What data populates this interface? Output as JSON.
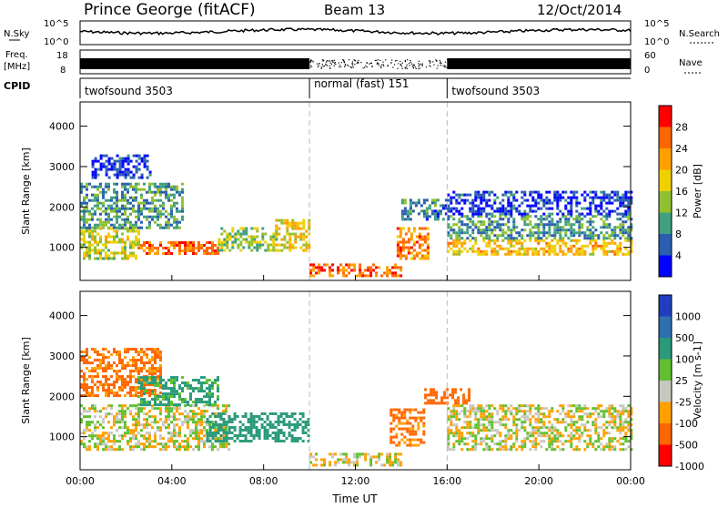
{
  "header": {
    "station": "Prince George (fitACF)",
    "beam": "Beam 13",
    "date": "12/Oct/2014"
  },
  "top_panels": {
    "nsky": {
      "label": "N.Sky",
      "ticks": [
        "10^5",
        "10^0"
      ]
    },
    "nsearch": {
      "label": "N.Search",
      "ticks": [
        "10^5",
        "10^0"
      ]
    },
    "freq": {
      "label_line1": "Freq.",
      "label_line2": "[MHz]",
      "ticks": [
        "18",
        "8"
      ]
    },
    "nave": {
      "label": "Nave",
      "ticks": [
        "60",
        "0"
      ]
    },
    "cpid": {
      "label": "CPID",
      "segments": [
        {
          "name": "twofsound 3503",
          "start_h": 0,
          "end_h": 10
        },
        {
          "name": "normal (fast) 151",
          "start_h": 10,
          "end_h": 16
        },
        {
          "name": "twofsound 3503",
          "start_h": 16,
          "end_h": 24
        }
      ]
    }
  },
  "x_axis": {
    "label": "Time UT",
    "ticks": [
      "00:00",
      "04:00",
      "08:00",
      "12:00",
      "16:00",
      "20:00",
      "00:00"
    ]
  },
  "chart_data": [
    {
      "type": "heatmap",
      "name": "power",
      "ylabel": "Slant Range [km]",
      "xlabel": "Time UT",
      "xlim": [
        0,
        24
      ],
      "ylim": [
        180,
        4600
      ],
      "yticks": [
        1000,
        2000,
        3000,
        4000
      ],
      "colorbar": {
        "label": "Power [dB]",
        "ticks": [
          "28",
          "24",
          "20",
          "16",
          "12",
          "8",
          "4"
        ],
        "colors": [
          "#ff0000",
          "#ff6600",
          "#ffa000",
          "#f0d000",
          "#90c030",
          "#40a080",
          "#2a5fb0",
          "#0000ff"
        ]
      },
      "regions": [
        {
          "t0": 0.0,
          "t1": 2.5,
          "r0": 700,
          "r1": 1500,
          "value": 16
        },
        {
          "t0": 2.5,
          "t1": 6.0,
          "r0": 850,
          "r1": 1150,
          "value": 26
        },
        {
          "t0": 0.0,
          "t1": 4.5,
          "r0": 1500,
          "r1": 2600,
          "value": 10
        },
        {
          "t0": 0.5,
          "t1": 3.0,
          "r0": 2700,
          "r1": 3300,
          "value": 4
        },
        {
          "t0": 6.0,
          "t1": 8.5,
          "r0": 900,
          "r1": 1500,
          "value": 14
        },
        {
          "t0": 8.5,
          "t1": 10.0,
          "r0": 900,
          "r1": 1700,
          "value": 18
        },
        {
          "t0": 10.0,
          "t1": 14.0,
          "r0": 300,
          "r1": 600,
          "value": 26
        },
        {
          "t0": 13.8,
          "t1": 15.2,
          "r0": 700,
          "r1": 1500,
          "value": 24
        },
        {
          "t0": 14.0,
          "t1": 16.0,
          "r0": 1700,
          "r1": 2200,
          "value": 8
        },
        {
          "t0": 16.0,
          "t1": 24.0,
          "r0": 800,
          "r1": 1200,
          "value": 20
        },
        {
          "t0": 16.0,
          "t1": 24.0,
          "r0": 1200,
          "r1": 1800,
          "value": 10
        },
        {
          "t0": 16.0,
          "t1": 24.0,
          "r0": 1800,
          "r1": 2400,
          "value": 4
        }
      ]
    },
    {
      "type": "heatmap",
      "name": "velocity",
      "ylabel": "Slant Range [km]",
      "xlabel": "Time UT",
      "xlim": [
        0,
        24
      ],
      "ylim": [
        180,
        4600
      ],
      "yticks": [
        1000,
        2000,
        3000,
        4000
      ],
      "colorbar": {
        "label": "Velocity [m s-1]",
        "ticks": [
          "1000",
          "500",
          "100",
          "25",
          "-25",
          "-100",
          "-500",
          "-1000"
        ],
        "colors": [
          "#1f3fbf",
          "#2f6fb0",
          "#2a9a7a",
          "#60c030",
          "#c8c8c0",
          "#ffa000",
          "#ff6600",
          "#ff0000"
        ]
      },
      "regions": [
        {
          "t0": 0.0,
          "t1": 6.5,
          "r0": 700,
          "r1": 1800,
          "value": 0
        },
        {
          "t0": 0.0,
          "t1": 3.5,
          "r0": 2000,
          "r1": 3200,
          "value": -150
        },
        {
          "t0": 2.5,
          "t1": 6.0,
          "r0": 1800,
          "r1": 2500,
          "value": 150
        },
        {
          "t0": 5.5,
          "t1": 10.0,
          "r0": 900,
          "r1": 1600,
          "value": 400
        },
        {
          "t0": 10.0,
          "t1": 14.0,
          "r0": 300,
          "r1": 600,
          "value": 0
        },
        {
          "t0": 13.5,
          "t1": 15.0,
          "r0": 800,
          "r1": 1700,
          "value": -150
        },
        {
          "t0": 15.0,
          "t1": 17.0,
          "r0": 1800,
          "r1": 2200,
          "value": -300
        },
        {
          "t0": 16.0,
          "t1": 24.0,
          "r0": 700,
          "r1": 1800,
          "value": 0
        }
      ]
    }
  ]
}
